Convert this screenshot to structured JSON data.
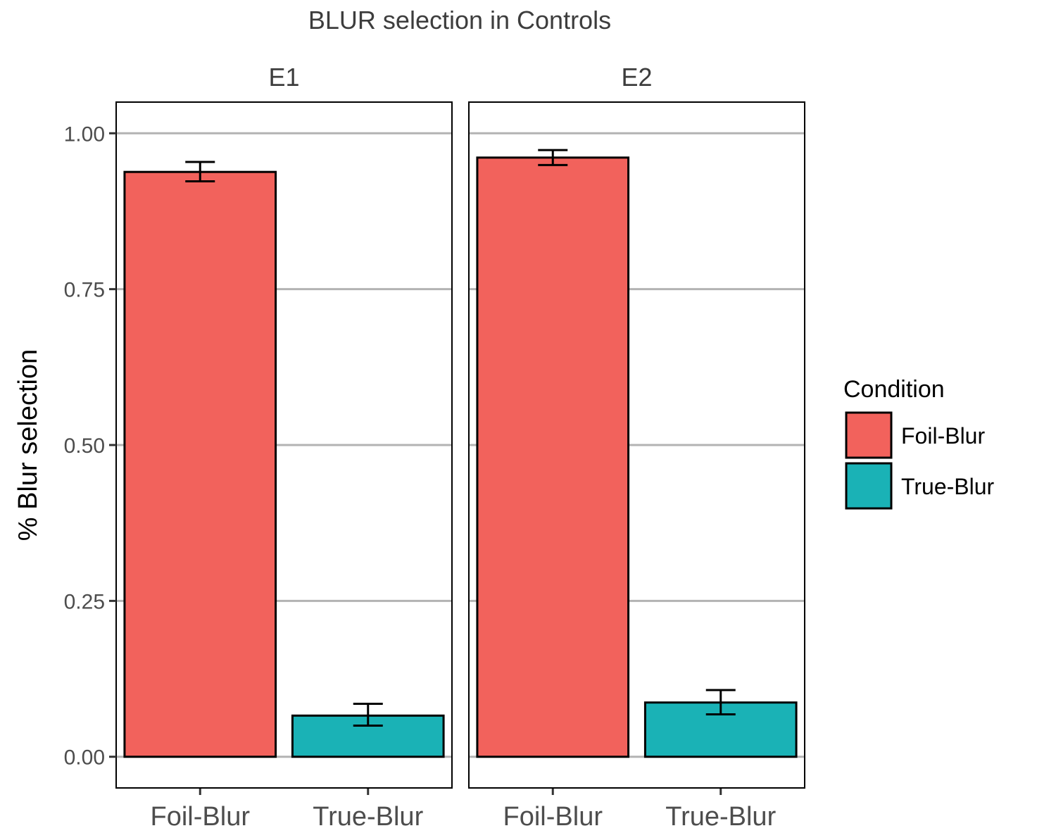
{
  "chart_data": {
    "type": "bar",
    "title": "BLUR selection in Controls",
    "ylabel": "% Blur selection",
    "xlabel": "",
    "ylim": [
      -0.05,
      1.05
    ],
    "yticks": [
      0.0,
      0.25,
      0.5,
      0.75,
      1.0
    ],
    "ytick_labels": [
      "0.00",
      "0.25",
      "0.50",
      "0.75",
      "1.00"
    ],
    "categories": [
      "Foil-Blur",
      "True-Blur"
    ],
    "grid": {
      "horizontal_major": true,
      "vertical": false
    },
    "legend": {
      "title": "Condition",
      "placement": "right",
      "entries": [
        {
          "name": "Foil-Blur",
          "color": "#F2625C"
        },
        {
          "name": "True-Blur",
          "color": "#1AB2B6"
        }
      ]
    },
    "panels": [
      {
        "label": "E1",
        "bars": [
          {
            "category": "Foil-Blur",
            "value": 0.938,
            "err_low": 0.923,
            "err_high": 0.954
          },
          {
            "category": "True-Blur",
            "value": 0.066,
            "err_low": 0.05,
            "err_high": 0.085
          }
        ]
      },
      {
        "label": "E2",
        "bars": [
          {
            "category": "Foil-Blur",
            "value": 0.961,
            "err_low": 0.949,
            "err_high": 0.973
          },
          {
            "category": "True-Blur",
            "value": 0.087,
            "err_low": 0.068,
            "err_high": 0.107
          }
        ]
      }
    ]
  }
}
